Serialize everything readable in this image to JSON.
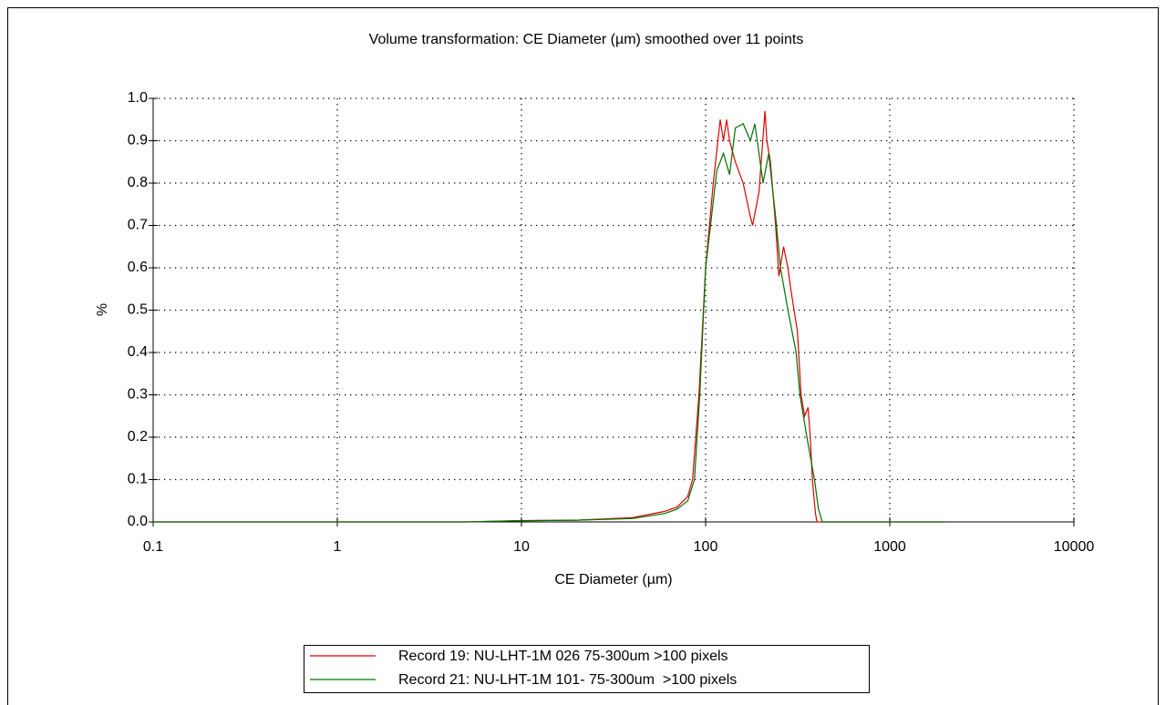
{
  "chart_data": {
    "type": "line",
    "title": "Volume transformation: CE Diameter (µm) smoothed over 11 points",
    "x_label": "CE Diameter (µm)",
    "y_label": "%",
    "xscale": "log",
    "xlim": [
      0.1,
      10000
    ],
    "xticks": [
      0.1,
      1,
      10,
      100,
      1000,
      10000
    ],
    "ylim": [
      0,
      1
    ],
    "yticks": [
      {
        "value": 0,
        "label": "0.0"
      },
      0.1,
      0.2,
      0.3,
      0.4,
      0.5,
      0.6,
      0.7,
      0.8,
      0.9,
      {
        "value": 1,
        "label": "1.0"
      }
    ],
    "grid": true,
    "legend": "bottom",
    "series": [
      {
        "name": "Record 19: NU-LHT-1M 026 75-300um >100 pixels",
        "color": "#e00000",
        "x": [
          0.1,
          1,
          5,
          10,
          20,
          40,
          60,
          70,
          80,
          85,
          92,
          100,
          110,
          120,
          125,
          130,
          135,
          145,
          160,
          175,
          180,
          195,
          210,
          215,
          225,
          240,
          250,
          265,
          280,
          290,
          315,
          330,
          345,
          360,
          370,
          380,
          395,
          402,
          2000
        ],
        "values": [
          0,
          0,
          0,
          0.003,
          0.004,
          0.01,
          0.025,
          0.035,
          0.06,
          0.1,
          0.3,
          0.6,
          0.8,
          0.95,
          0.9,
          0.95,
          0.9,
          0.85,
          0.8,
          0.72,
          0.7,
          0.78,
          0.97,
          0.9,
          0.85,
          0.7,
          0.58,
          0.65,
          0.6,
          0.55,
          0.45,
          0.3,
          0.25,
          0.27,
          0.2,
          0.1,
          0.02,
          0,
          0
        ]
      },
      {
        "name": "Record 21: NU-LHT-1M 101- 75-300um  >100 pixels",
        "color": "#007000",
        "x": [
          0.1,
          1,
          5,
          10,
          20,
          40,
          60,
          70,
          80,
          87,
          93,
          100,
          115,
          125,
          135,
          145,
          160,
          175,
          185,
          205,
          220,
          240,
          255,
          280,
          310,
          325,
          355,
          390,
          410,
          430,
          2000
        ],
        "values": [
          0,
          0,
          0,
          0.003,
          0.004,
          0.008,
          0.02,
          0.03,
          0.05,
          0.1,
          0.3,
          0.6,
          0.83,
          0.87,
          0.82,
          0.93,
          0.94,
          0.9,
          0.94,
          0.8,
          0.87,
          0.72,
          0.6,
          0.5,
          0.4,
          0.3,
          0.2,
          0.1,
          0.03,
          0,
          0
        ]
      }
    ]
  }
}
